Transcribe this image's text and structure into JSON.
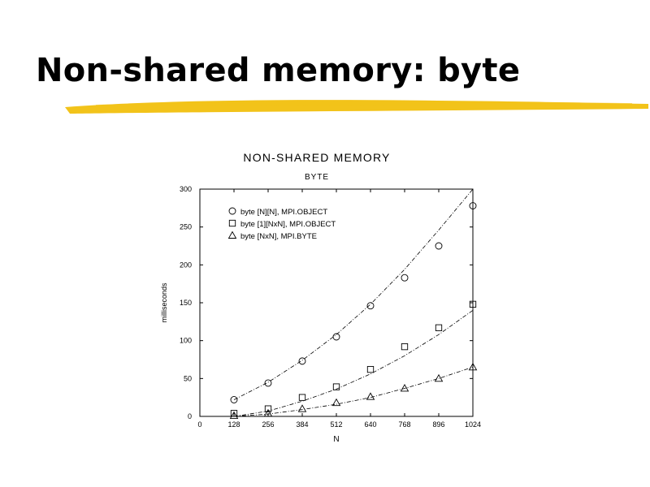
{
  "slide": {
    "title": "Non-shared memory: byte",
    "accent_color": "#F2C31A"
  },
  "chart_data": {
    "type": "scatter",
    "title": "NON-SHARED MEMORY",
    "subtitle": "BYTE",
    "xlabel": "N",
    "ylabel": "milliseconds",
    "xlim": [
      0,
      1024
    ],
    "ylim": [
      0,
      300
    ],
    "xticks": [
      "0",
      "128",
      "256",
      "384",
      "512",
      "640",
      "768",
      "896",
      "1024"
    ],
    "yticks": [
      "0",
      "50",
      "100",
      "150",
      "200",
      "250",
      "300"
    ],
    "legend_position": "top-left",
    "series": [
      {
        "name": "byte [N][N], MPI.OBJECT",
        "marker": "circle",
        "x": [
          128,
          256,
          384,
          512,
          640,
          768,
          896,
          1024
        ],
        "y": [
          22,
          44,
          73,
          105,
          146,
          183,
          225,
          278
        ],
        "fit": [
          [
            128,
            22
          ],
          [
            256,
            45
          ],
          [
            384,
            74
          ],
          [
            512,
            108
          ],
          [
            640,
            148
          ],
          [
            768,
            194
          ],
          [
            896,
            246
          ],
          [
            1024,
            300
          ]
        ]
      },
      {
        "name": "byte [1][NxN], MPI.OBJECT",
        "marker": "square",
        "x": [
          128,
          256,
          384,
          512,
          640,
          768,
          896,
          1024
        ],
        "y": [
          4,
          10,
          25,
          39,
          62,
          92,
          117,
          148
        ],
        "fit": [
          [
            128,
            0
          ],
          [
            256,
            7
          ],
          [
            384,
            20
          ],
          [
            512,
            36
          ],
          [
            640,
            56
          ],
          [
            768,
            80
          ],
          [
            896,
            108
          ],
          [
            1024,
            140
          ]
        ]
      },
      {
        "name": "byte [NxN], MPI.BYTE",
        "marker": "triangle",
        "x": [
          128,
          256,
          384,
          512,
          640,
          768,
          896,
          1024
        ],
        "y": [
          1,
          4,
          10,
          18,
          26,
          37,
          50,
          65
        ],
        "fit": [
          [
            128,
            0
          ],
          [
            256,
            3
          ],
          [
            384,
            9
          ],
          [
            512,
            16
          ],
          [
            640,
            25
          ],
          [
            768,
            37
          ],
          [
            896,
            50
          ],
          [
            1024,
            65
          ]
        ]
      }
    ]
  }
}
